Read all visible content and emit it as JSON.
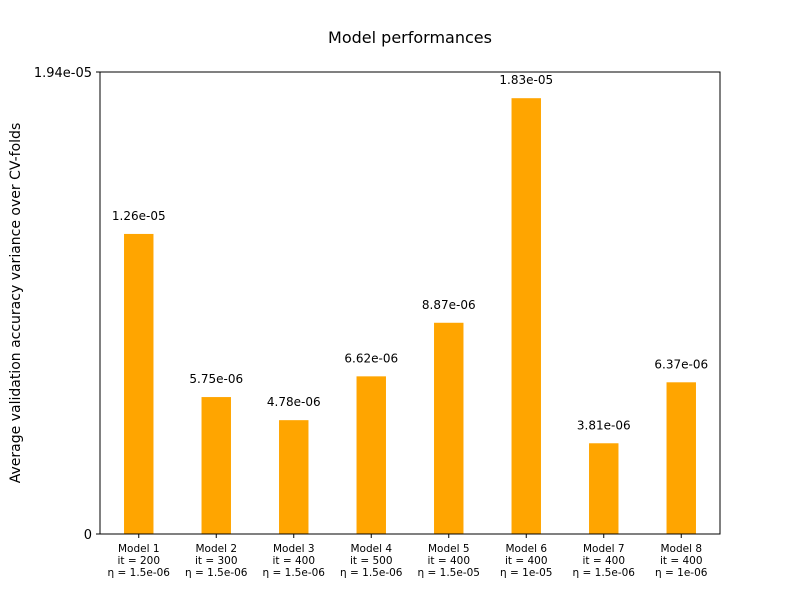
{
  "chart_data": {
    "type": "bar",
    "title": "Model performances",
    "xlabel": "",
    "ylabel": "Average validation accuracy variance over CV-folds",
    "categories": [
      [
        "Model 1",
        "it = 200",
        "η = 1.5e-06"
      ],
      [
        "Model 2",
        "it = 300",
        "η = 1.5e-06"
      ],
      [
        "Model 3",
        "it = 400",
        "η = 1.5e-06"
      ],
      [
        "Model 4",
        "it = 500",
        "η = 1.5e-06"
      ],
      [
        "Model 5",
        "it = 400",
        "η = 1.5e-05"
      ],
      [
        "Model 6",
        "it = 400",
        "η = 1e-05"
      ],
      [
        "Model 7",
        "it = 400",
        "η = 1.5e-06"
      ],
      [
        "Model 8",
        "it = 400",
        "η = 1e-06"
      ]
    ],
    "values": [
      1.26e-05,
      5.75e-06,
      4.78e-06,
      6.62e-06,
      8.87e-06,
      1.83e-05,
      3.81e-06,
      6.37e-06
    ],
    "value_labels": [
      "1.26e-05",
      "5.75e-06",
      "4.78e-06",
      "6.62e-06",
      "8.87e-06",
      "1.83e-05",
      "3.81e-06",
      "6.37e-06"
    ],
    "ylim": [
      0,
      1.94e-05
    ],
    "yticks": [
      0,
      1.94e-05
    ],
    "ytick_labels": [
      "0",
      "1.94e-05"
    ],
    "bar_color": "#ffa500",
    "grid": false,
    "legend": "none"
  }
}
